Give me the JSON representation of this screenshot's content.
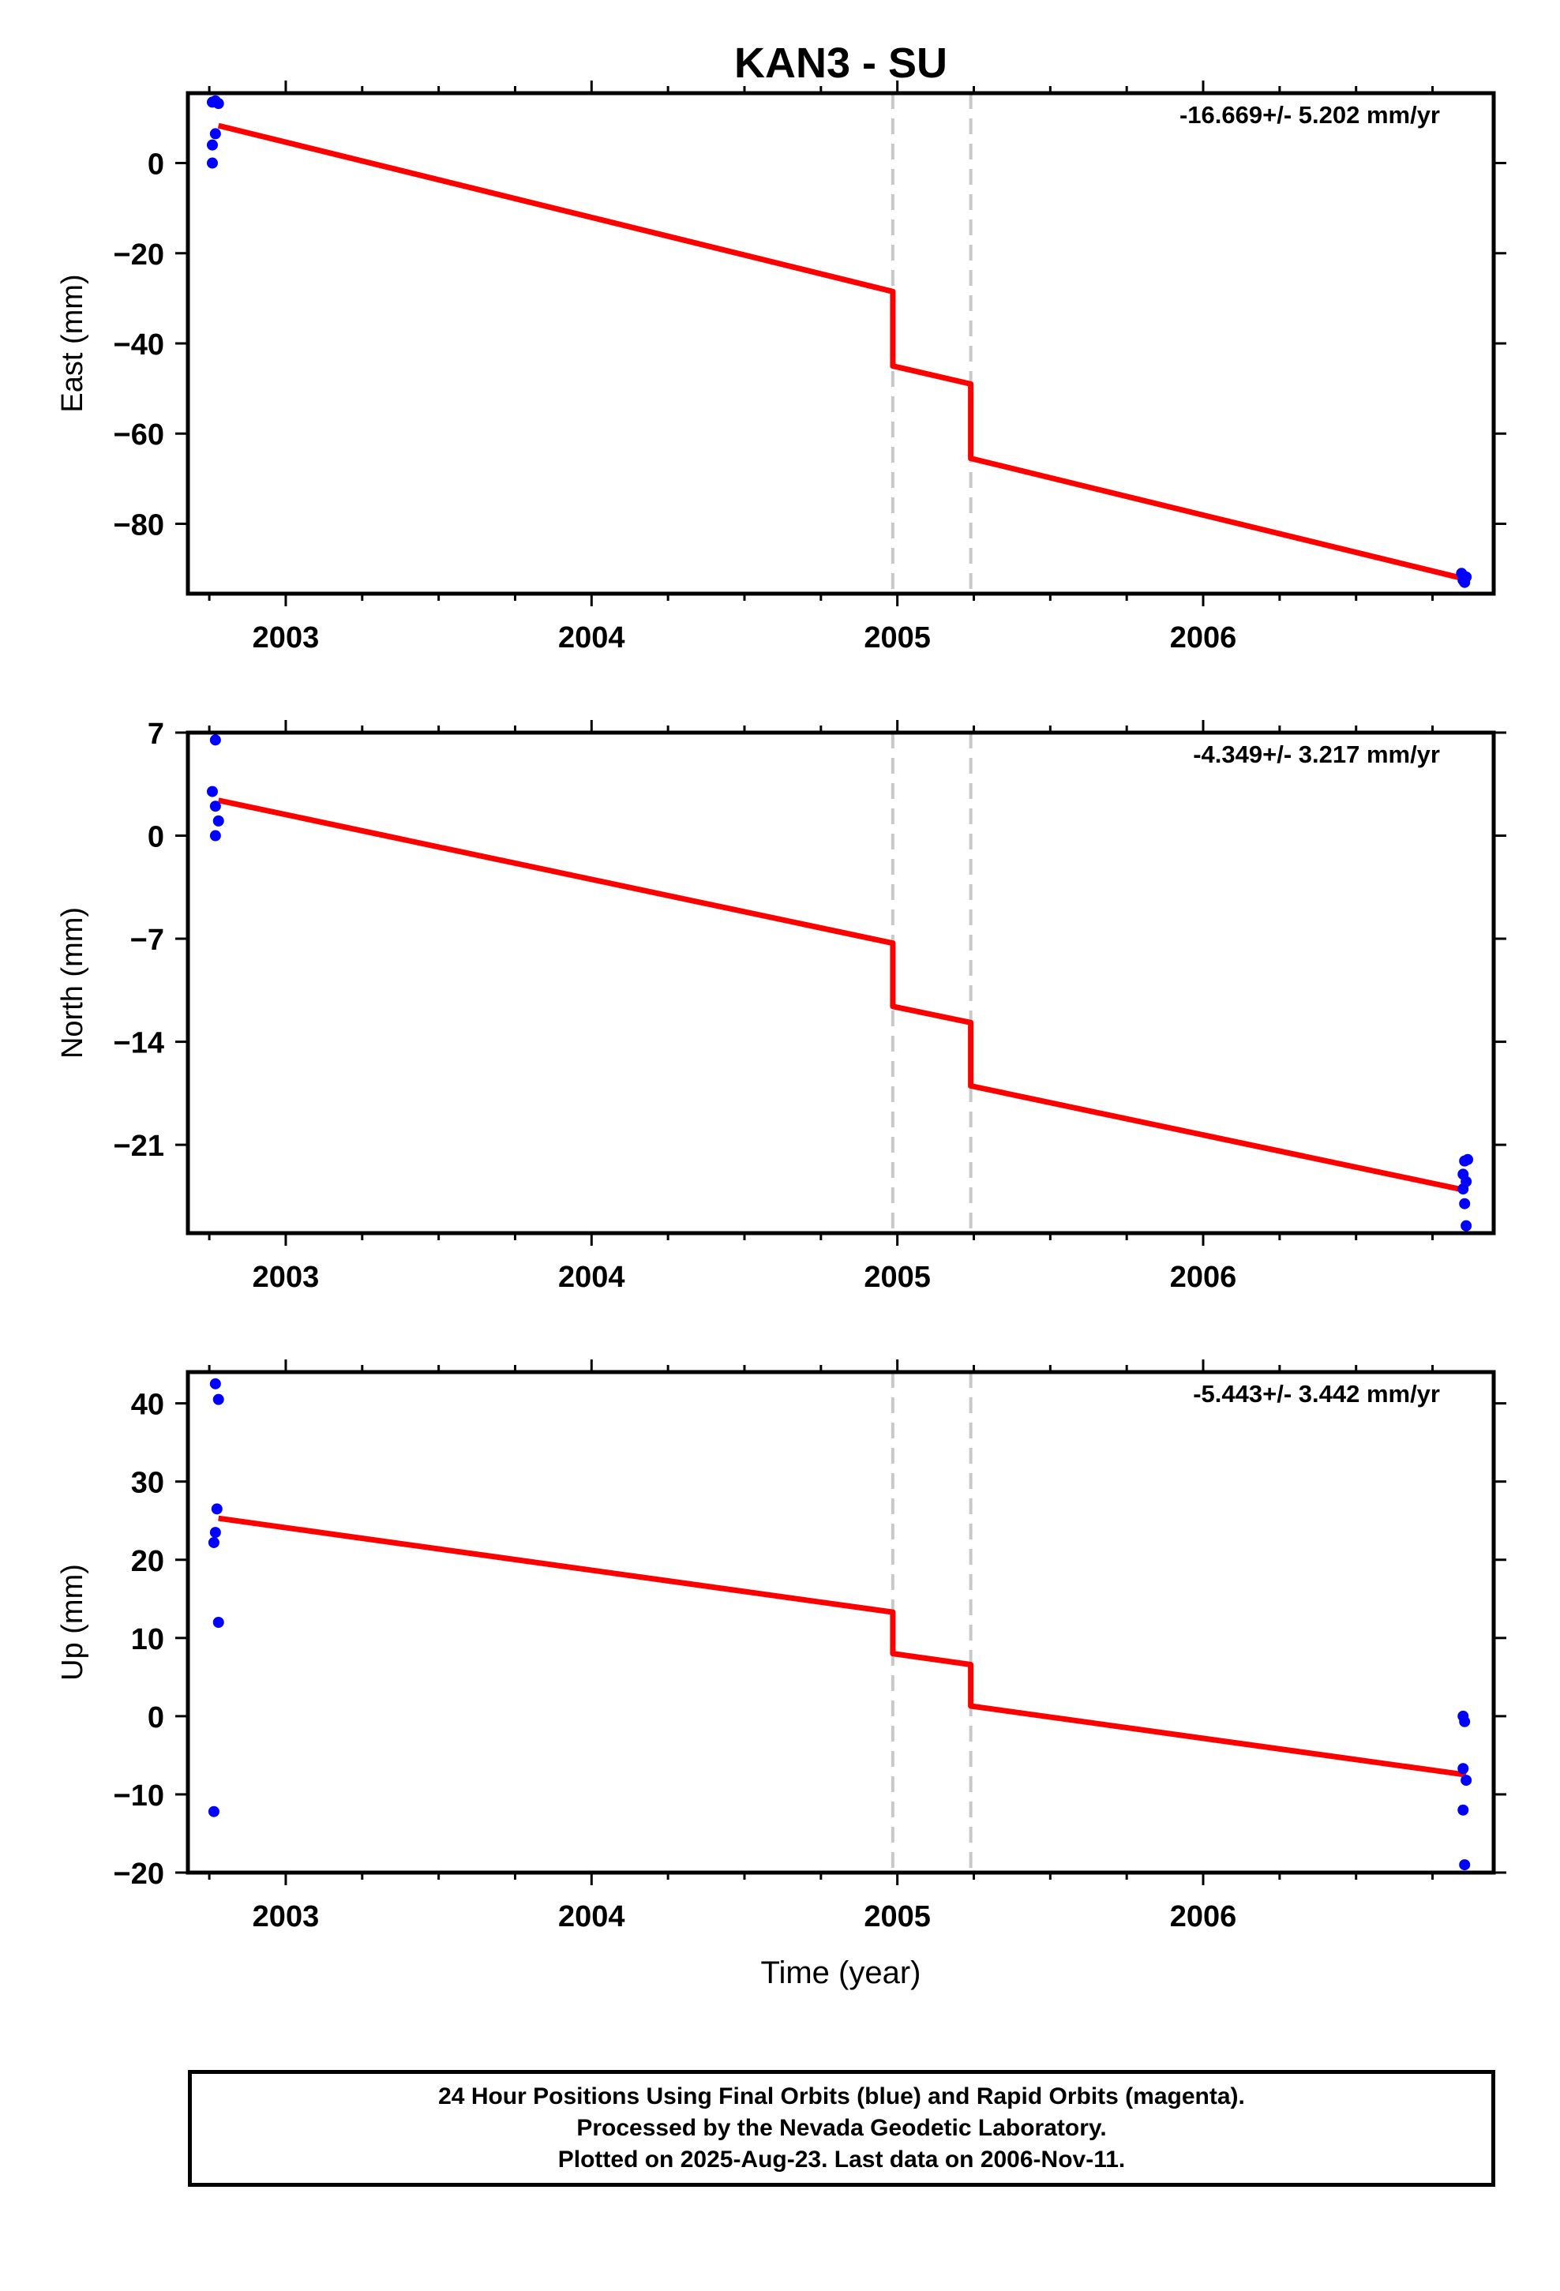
{
  "title": "KAN3 - SU",
  "colors": {
    "fit": "#ff0000",
    "data": "#0000ff",
    "breaks": "#c8c8c8",
    "frame": "#000000"
  },
  "footer": {
    "line1": "24 Hour Positions Using Final Orbits (blue) and Rapid Orbits (magenta).",
    "line2": "Processed by the Nevada Geodetic Laboratory.",
    "line3": "Plotted on 2025-Aug-23. Last data on 2006-Nov-11."
  },
  "chart_data": [
    {
      "type": "scatter",
      "component": "east",
      "ylabel": "East (mm)",
      "rate_label": "-16.669+/- 5.202 mm/yr",
      "xlabel": "",
      "xlim": [
        2002.68,
        2006.95
      ],
      "ylim": [
        -95.5,
        15.5
      ],
      "xticks": [
        2003,
        2004,
        2005,
        2006
      ],
      "yticks": [
        0,
        -20,
        -40,
        -60,
        -80
      ],
      "ytick_labels": [
        "0",
        "−20",
        "−40",
        "−60",
        "−80"
      ],
      "breaks": [
        2004.985,
        2005.24
      ],
      "points": [
        [
          2002.76,
          13.5
        ],
        [
          2002.77,
          13.8
        ],
        [
          2002.78,
          13.2
        ],
        [
          2002.77,
          6.5
        ],
        [
          2002.76,
          4.0
        ],
        [
          2002.76,
          0.0
        ],
        [
          2006.845,
          -91.0
        ],
        [
          2006.85,
          -92.0
        ],
        [
          2006.855,
          -93.0
        ],
        [
          2006.85,
          -92.5
        ],
        [
          2006.86,
          -91.8
        ]
      ],
      "fit": [
        [
          2002.78,
          8.3
        ],
        [
          2004.985,
          -28.5
        ],
        [
          2004.985,
          -45.0
        ],
        [
          2005.24,
          -49.0
        ],
        [
          2005.24,
          -65.5
        ],
        [
          2006.86,
          -92.3
        ]
      ]
    },
    {
      "type": "scatter",
      "component": "north",
      "ylabel": "North (mm)",
      "rate_label": "-4.349+/- 3.217 mm/yr",
      "xlabel": "",
      "xlim": [
        2002.68,
        2006.95
      ],
      "ylim": [
        -27.0,
        7.0
      ],
      "xticks": [
        2003,
        2004,
        2005,
        2006
      ],
      "yticks": [
        7,
        0,
        -7,
        -14,
        -21
      ],
      "ytick_labels": [
        "7",
        "0",
        "−7",
        "−14",
        "−21"
      ],
      "breaks": [
        2004.985,
        2005.24
      ],
      "points": [
        [
          2002.77,
          6.5
        ],
        [
          2002.76,
          3.0
        ],
        [
          2002.77,
          2.0
        ],
        [
          2002.78,
          1.0
        ],
        [
          2002.77,
          0.0
        ],
        [
          2006.855,
          -22.1
        ],
        [
          2006.85,
          -23.0
        ],
        [
          2006.86,
          -23.5
        ],
        [
          2006.85,
          -24.0
        ],
        [
          2006.855,
          -25.0
        ],
        [
          2006.86,
          -26.5
        ],
        [
          2006.865,
          -22.0
        ]
      ],
      "fit": [
        [
          2002.78,
          2.4
        ],
        [
          2004.985,
          -7.3
        ],
        [
          2004.985,
          -11.6
        ],
        [
          2005.24,
          -12.7
        ],
        [
          2005.24,
          -17.0
        ],
        [
          2006.86,
          -24.1
        ]
      ]
    },
    {
      "type": "scatter",
      "component": "up",
      "ylabel": "Up (mm)",
      "rate_label": "-5.443+/- 3.442 mm/yr",
      "xlabel": "Time (year)",
      "xlim": [
        2002.68,
        2006.95
      ],
      "ylim": [
        -20.0,
        44.0
      ],
      "xticks": [
        2003,
        2004,
        2005,
        2006
      ],
      "yticks": [
        40,
        30,
        20,
        10,
        0,
        -10,
        -20
      ],
      "ytick_labels": [
        "40",
        "30",
        "20",
        "10",
        "0",
        "−10",
        "−20"
      ],
      "breaks": [
        2004.985,
        2005.24
      ],
      "points": [
        [
          2002.77,
          42.5
        ],
        [
          2002.78,
          40.5
        ],
        [
          2002.775,
          26.5
        ],
        [
          2002.77,
          23.5
        ],
        [
          2002.765,
          22.2
        ],
        [
          2002.78,
          12.0
        ],
        [
          2002.765,
          -12.2
        ],
        [
          2006.85,
          0.0
        ],
        [
          2006.855,
          -0.7
        ],
        [
          2006.85,
          -6.7
        ],
        [
          2006.86,
          -8.2
        ],
        [
          2006.85,
          -12.0
        ],
        [
          2006.855,
          -19.0
        ]
      ],
      "fit": [
        [
          2002.78,
          25.3
        ],
        [
          2004.985,
          13.3
        ],
        [
          2004.985,
          8.0
        ],
        [
          2005.24,
          6.6
        ],
        [
          2005.24,
          1.3
        ],
        [
          2006.86,
          -7.5
        ]
      ]
    }
  ]
}
